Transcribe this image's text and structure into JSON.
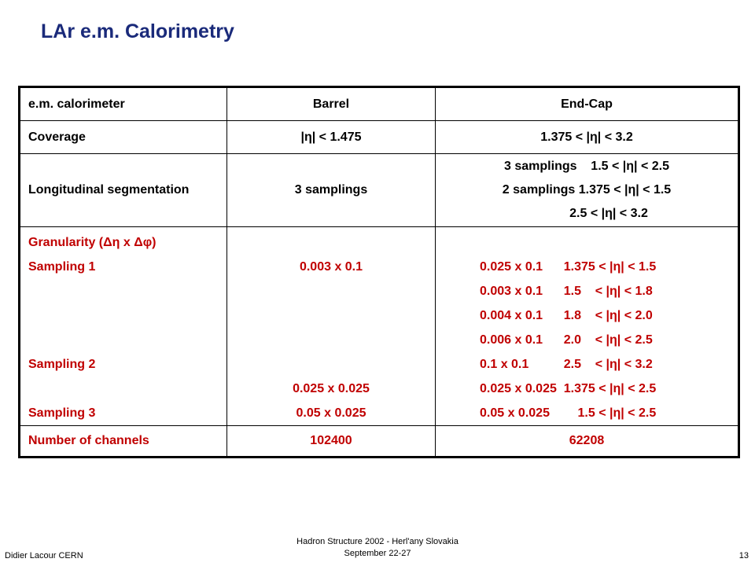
{
  "slide": {
    "title": "LAr e.m. Calorimetry"
  },
  "table": {
    "header": [
      "e.m. calorimeter",
      "Barrel",
      "End-Cap"
    ],
    "coverage": {
      "label": "Coverage",
      "barrel": "|η| < 1.475",
      "endcap": "1.375 < |η| < 3.2"
    },
    "longitudinal": {
      "label": "Longitudinal segmentation",
      "barrel": "3 samplings",
      "endcap": [
        "3 samplings    1.5 < |η| < 2.5",
        "2 samplings 1.375 < |η| < 1.5",
        "2.5 < |η| < 3.2"
      ]
    },
    "granularity": {
      "label": "Granularity (Δη x Δφ)",
      "labels": [
        "Sampling 1",
        "",
        "",
        "",
        "Sampling 2",
        "",
        "Sampling 3"
      ],
      "barrel": [
        "0.003 x 0.1",
        "",
        "",
        "",
        "",
        "0.025 x 0.025",
        "0.05 x 0.025"
      ],
      "endcap": [
        "0.025 x 0.1      1.375 < |η| < 1.5",
        "0.003 x 0.1      1.5    < |η| < 1.8",
        "0.004 x 0.1      1.8    < |η| < 2.0",
        "0.006 x 0.1      2.0    < |η| < 2.5",
        "0.1 x 0.1          2.5    < |η| < 3.2",
        "0.025 x 0.025  1.375 < |η| < 2.5",
        "0.05 x 0.025        1.5 < |η| < 2.5"
      ]
    },
    "channels": {
      "label": "Number of channels",
      "barrel": "102400",
      "endcap": "62208"
    }
  },
  "footer": {
    "left": "Didier Lacour CERN",
    "center_line1": "Hadron Structure 2002 - Herl'any Slovakia",
    "center_line2": "September 22-27",
    "page": "13"
  }
}
